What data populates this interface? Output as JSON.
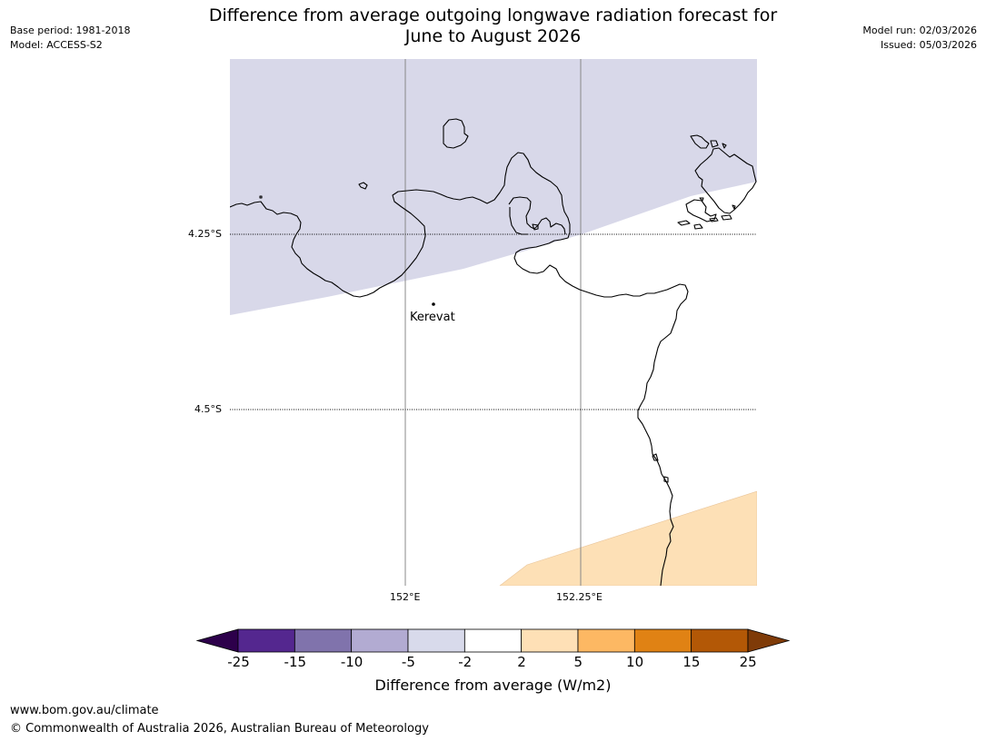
{
  "header": {
    "title_line1": "Difference from average outgoing longwave radiation forecast for",
    "title_line2": "June to August 2026",
    "base_period": "Base period: 1981-2018",
    "model": "Model: ACCESS-S2",
    "model_run": "Model run: 02/03/2026",
    "issued": "Issued: 05/03/2026"
  },
  "map": {
    "lat_labels": [
      "4.25°S",
      "4.5°S"
    ],
    "lon_labels": [
      "152°E",
      "152.25°E"
    ],
    "places": [
      {
        "name": "Kerevat"
      }
    ],
    "fills": {
      "negative_band": "#d8d8e9",
      "positive_band": "#fde0b6"
    }
  },
  "colorbar": {
    "label": "Difference from average (W/m2)",
    "ticks": [
      "-25",
      "-15",
      "-10",
      "-5",
      "-2",
      "2",
      "5",
      "10",
      "15",
      "25"
    ],
    "colors": [
      "#54278f",
      "#8073ac",
      "#b2abd2",
      "#d8daeb",
      "#ffffff",
      "#fee0b6",
      "#fdb863",
      "#e08214",
      "#b35806"
    ],
    "extend_low": "#2d004b",
    "extend_high": "#7f3b08"
  },
  "footer": {
    "url": "www.bom.gov.au/climate",
    "copyright": "© Commonwealth of Australia 2026, Australian Bureau of Meteorology"
  }
}
